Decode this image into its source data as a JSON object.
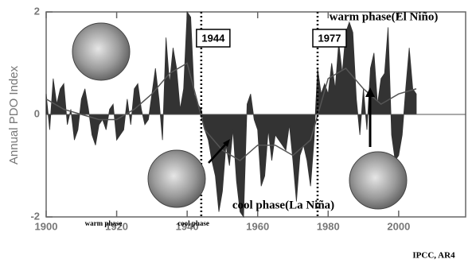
{
  "chart_data": {
    "type": "area",
    "y_label": "Annual PDO Index",
    "x": [
      1900,
      1901,
      1902,
      1903,
      1904,
      1905,
      1906,
      1907,
      1908,
      1909,
      1910,
      1911,
      1912,
      1913,
      1914,
      1915,
      1916,
      1917,
      1918,
      1919,
      1920,
      1921,
      1922,
      1923,
      1924,
      1925,
      1926,
      1927,
      1928,
      1929,
      1930,
      1931,
      1932,
      1933,
      1934,
      1935,
      1936,
      1937,
      1938,
      1939,
      1940,
      1941,
      1942,
      1943,
      1944,
      1945,
      1946,
      1947,
      1948,
      1949,
      1950,
      1951,
      1952,
      1953,
      1954,
      1955,
      1956,
      1957,
      1958,
      1959,
      1960,
      1961,
      1962,
      1963,
      1964,
      1965,
      1966,
      1967,
      1968,
      1969,
      1970,
      1971,
      1972,
      1973,
      1974,
      1975,
      1976,
      1977,
      1978,
      1979,
      1980,
      1981,
      1982,
      1983,
      1984,
      1985,
      1986,
      1987,
      1988,
      1989,
      1990,
      1991,
      1992,
      1993,
      1994,
      1995,
      1996,
      1997,
      1998,
      1999,
      2000,
      2001,
      2002,
      2003,
      2004,
      2005
    ],
    "values": [
      0.4,
      -0.3,
      0.7,
      0.2,
      0.5,
      0.6,
      -0.2,
      0.1,
      -0.5,
      -0.3,
      0.3,
      0.5,
      0.1,
      -0.4,
      -0.6,
      -0.2,
      -0.1,
      -0.3,
      0.1,
      0.2,
      -0.5,
      -0.4,
      -0.3,
      0.3,
      -0.2,
      0.5,
      0.6,
      0.1,
      -0.2,
      -0.1,
      0.4,
      0.9,
      0.3,
      -0.5,
      1.5,
      0.6,
      1.3,
      0.9,
      0.1,
      0.5,
      2.0,
      1.9,
      0.4,
      0.2,
      0.1,
      -0.3,
      -0.5,
      -0.9,
      -1.2,
      -1.9,
      -1.5,
      -0.6,
      -1.0,
      -0.3,
      -1.3,
      -1.9,
      -2.0,
      0.2,
      0.4,
      -0.1,
      -0.3,
      -1.4,
      -1.2,
      -0.3,
      -0.9,
      -0.4,
      -0.5,
      -0.6,
      -0.7,
      -0.2,
      -0.9,
      -1.7,
      -0.8,
      -0.6,
      -0.9,
      -1.4,
      -0.5,
      0.9,
      0.4,
      0.6,
      0.4,
      1.0,
      0.5,
      1.4,
      0.8,
      1.6,
      1.8,
      1.6,
      0.3,
      -0.4,
      0.5,
      -0.3,
      0.9,
      1.2,
      0.2,
      0.7,
      0.8,
      1.7,
      -0.4,
      -0.9,
      -0.8,
      -0.4,
      0.5,
      1.3,
      0.5,
      0.4
    ],
    "color": "#333333",
    "smooth": {
      "x": [
        1900,
        1905,
        1910,
        1915,
        1920,
        1925,
        1930,
        1935,
        1940,
        1945,
        1950,
        1955,
        1960,
        1965,
        1970,
        1975,
        1980,
        1985,
        1990,
        1995,
        2000,
        2005
      ],
      "values": [
        0.3,
        0.1,
        0.0,
        -0.1,
        -0.1,
        0.1,
        0.4,
        0.8,
        1.0,
        -0.3,
        -0.7,
        -0.9,
        -0.6,
        -0.6,
        -0.8,
        -0.5,
        0.7,
        0.9,
        0.5,
        0.2,
        0.4,
        0.5
      ],
      "color": "#555555"
    },
    "xlim": [
      1900,
      2019
    ],
    "xticks": [
      1900,
      1920,
      1940,
      1960,
      1980,
      2000
    ],
    "ylim": [
      -2,
      2
    ],
    "yticks": [
      -2,
      0,
      2
    ],
    "vlines": [
      1944,
      1977
    ],
    "annotations": [
      "warm phase(El Niño)",
      "cool phase(La Niña)",
      "warm phase",
      "cool phase",
      "IPCC, AR4"
    ]
  }
}
